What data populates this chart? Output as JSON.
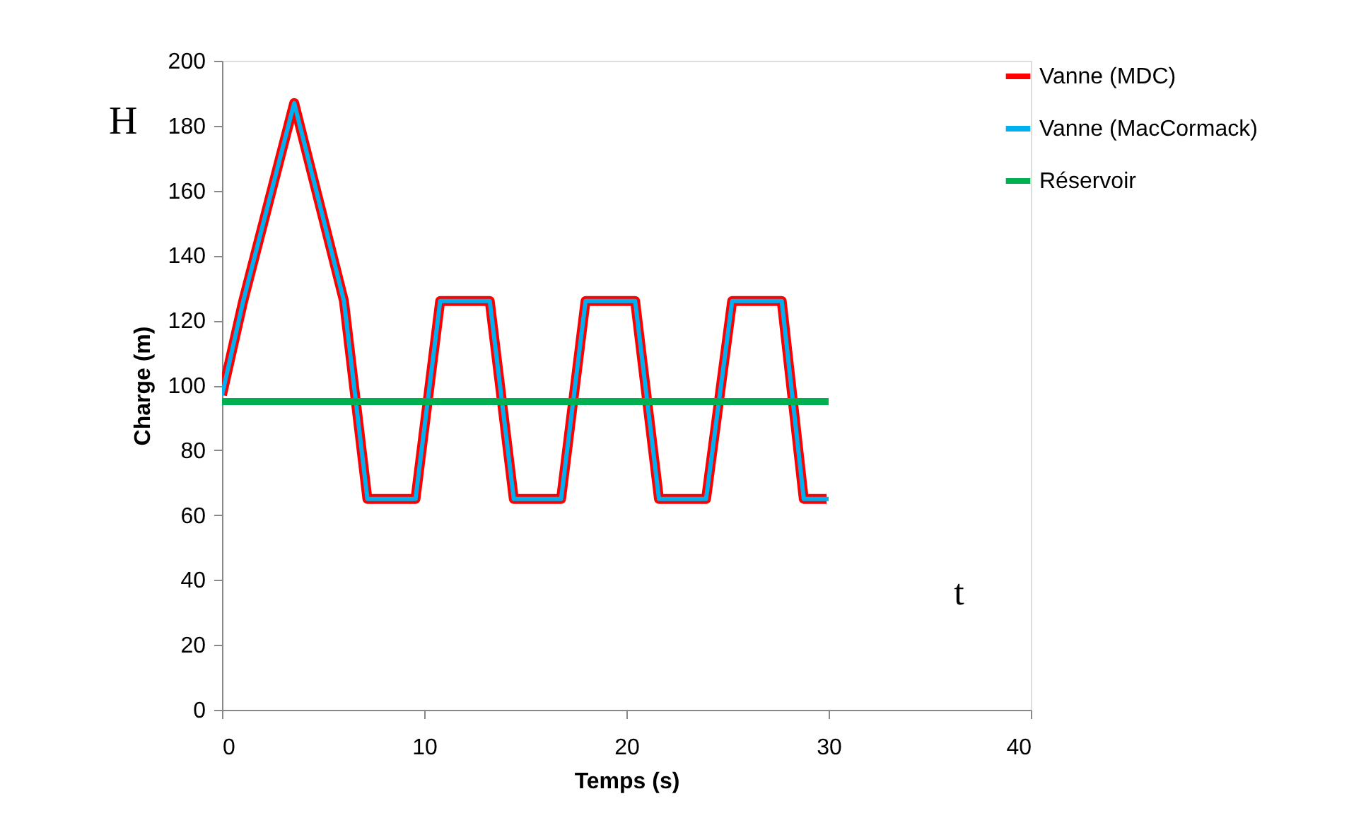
{
  "chart_data": {
    "type": "line",
    "xlabel": "Temps (s)",
    "ylabel": "Charge (m)",
    "xlim": [
      0,
      40
    ],
    "xticks": [
      0,
      10,
      20,
      30,
      40
    ],
    "ylim": [
      0,
      200
    ],
    "yticks": [
      0,
      20,
      40,
      60,
      80,
      100,
      120,
      140,
      160,
      180,
      200
    ],
    "grid": false,
    "legend": "right",
    "marker": "none",
    "line_style": "solid",
    "annotations": [
      "H",
      "t"
    ],
    "series": [
      {
        "name": "Vanne (MDC)",
        "color": "#ff0000",
        "x": [
          0,
          1.05,
          3.57,
          6.03,
          7.19,
          9.57,
          10.79,
          13.24,
          14.43,
          16.77,
          17.98,
          20.43,
          21.61,
          23.94,
          25.23,
          27.68,
          28.77,
          29.9
        ],
        "values": [
          97,
          126,
          187,
          126,
          65,
          65,
          126,
          126,
          65,
          65,
          126,
          126,
          65,
          65,
          126,
          126,
          65,
          65
        ]
      },
      {
        "name": "Vanne (MacCormack)",
        "color": "#00b0f0",
        "x": [
          0,
          1.05,
          3.57,
          6.03,
          7.19,
          9.57,
          10.79,
          13.24,
          14.43,
          16.77,
          17.98,
          20.43,
          21.61,
          23.94,
          25.23,
          27.68,
          28.77,
          30
        ],
        "values": [
          97,
          126,
          187,
          126,
          65,
          65,
          126,
          126,
          65,
          65,
          126,
          126,
          65,
          65,
          126,
          126,
          65,
          65
        ]
      },
      {
        "name": "Réservoir",
        "color": "#00b050",
        "x": [
          0,
          30
        ],
        "values": [
          95,
          95
        ]
      }
    ]
  }
}
